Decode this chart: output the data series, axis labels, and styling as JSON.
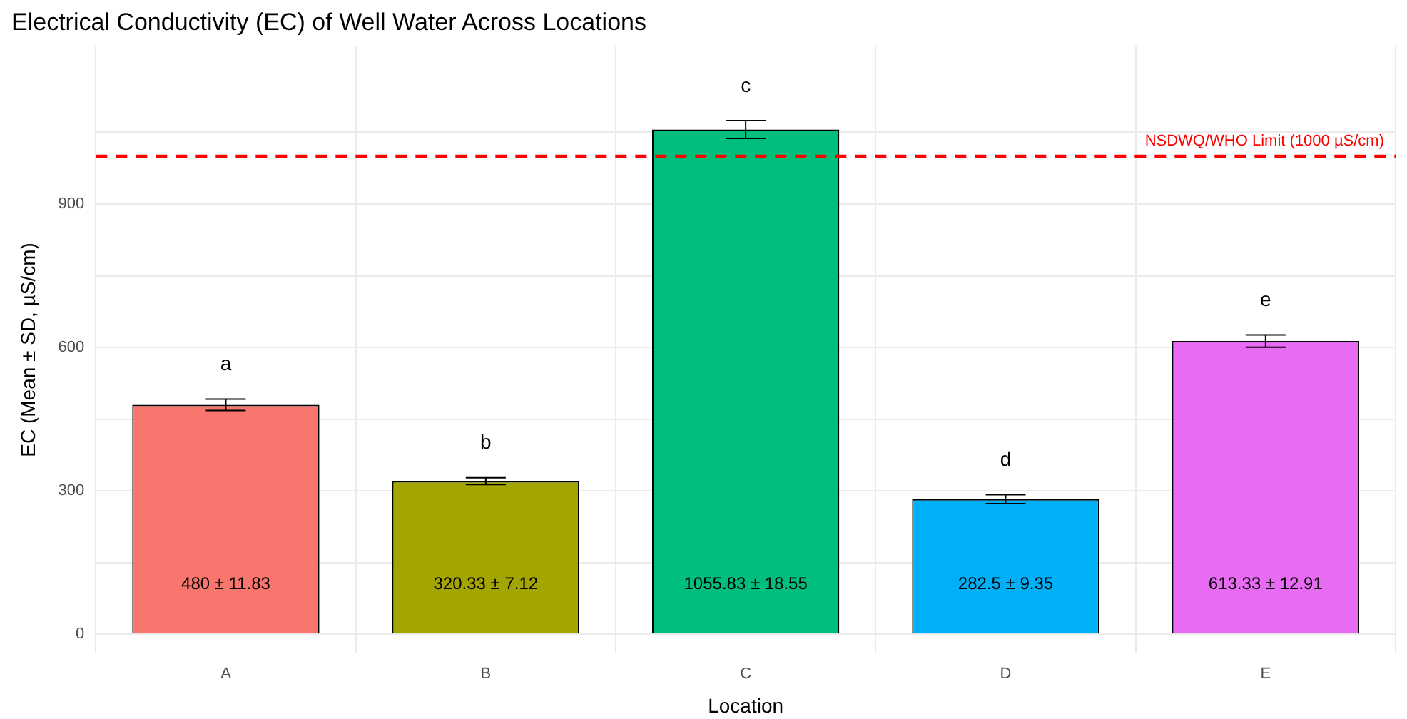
{
  "chart_data": {
    "type": "bar",
    "title": "Electrical Conductivity (EC) of Well Water Across Locations",
    "xlabel": "Location",
    "ylabel": "EC (Mean ± SD, µS/cm)",
    "categories": [
      "A",
      "B",
      "C",
      "D",
      "E"
    ],
    "values": [
      480,
      320.33,
      1055.83,
      282.5,
      613.33
    ],
    "colors": [
      "#f8766d",
      "#a3a500",
      "#00bf7d",
      "#00b0f6",
      "#e76bf3"
    ],
    "errors": [
      11.83,
      7.12,
      18.55,
      9.35,
      12.91
    ],
    "value_labels": [
      "480 ± 11.83",
      "320.33 ± 7.12",
      "1055.83 ± 18.55",
      "282.5 ± 9.35",
      "613.33 ± 12.91"
    ],
    "annotations": [
      "a",
      "b",
      "c",
      "d",
      "e"
    ],
    "ref_lines": [
      {
        "axis": "y",
        "value": 1000,
        "label": "NSDWQ/WHO Limit (1000 µS/cm)",
        "color": "#ff0000",
        "line_style": "dashed"
      }
    ],
    "ylim": [
      -40,
      1230
    ],
    "yticks": [
      0,
      {
        "value": 150,
        "label": null
      },
      300,
      {
        "value": 450,
        "label": null
      },
      600,
      {
        "value": 750,
        "label": null
      },
      900,
      {
        "value": 1050,
        "label": null
      }
    ],
    "grid": true
  }
}
